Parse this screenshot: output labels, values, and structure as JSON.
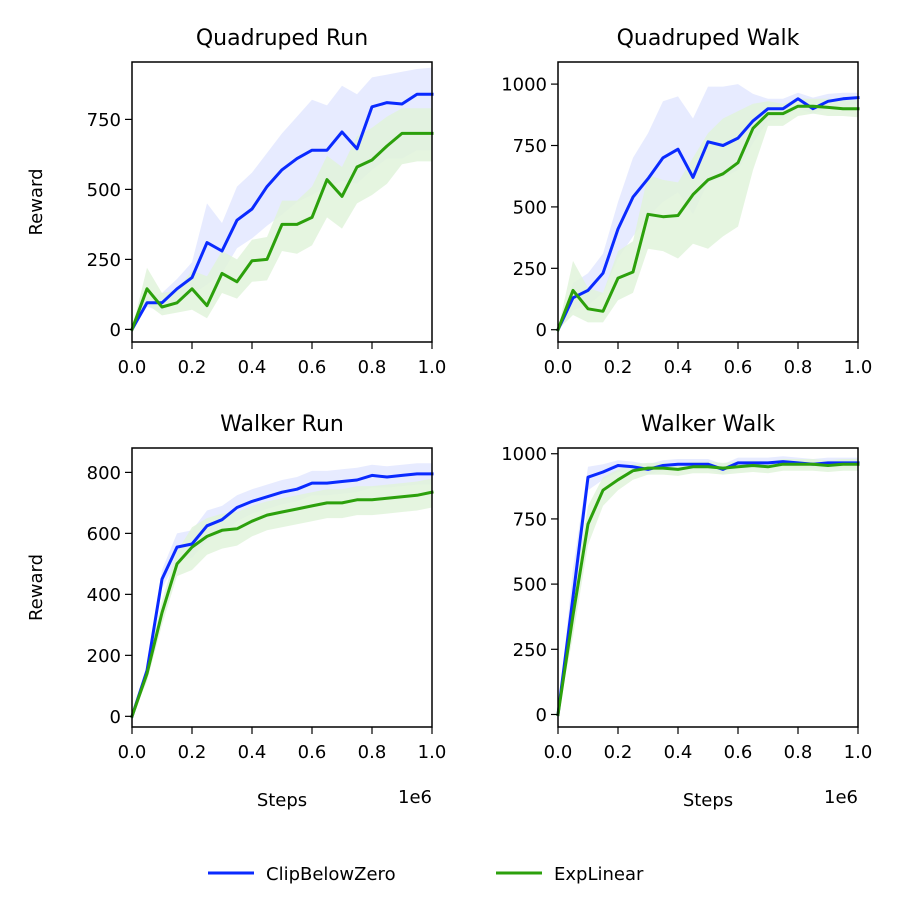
{
  "colors": {
    "ClipBelowZero": "#0a2aff",
    "ExpLinear": "#2ca00c",
    "ClipBelowZero_band": "#e3e8ff",
    "ExpLinear_band": "#e1f3da"
  },
  "legend": {
    "placement": "bottom-center",
    "items": [
      {
        "name": "ClipBelowZero",
        "color_key": "ClipBelowZero"
      },
      {
        "name": "ExpLinear",
        "color_key": "ExpLinear"
      }
    ]
  },
  "chart_data": [
    {
      "type": "line",
      "title": "Quadruped Run",
      "xlabel": "",
      "ylabel": "Reward",
      "x_offset_text": "",
      "xlim": [
        0,
        1.0
      ],
      "ylim": [
        -45,
        955
      ],
      "xticks": [
        0.0,
        0.2,
        0.4,
        0.6,
        0.8,
        1.0
      ],
      "xtick_labels": [
        "0.0",
        "0.2",
        "0.4",
        "0.6",
        "0.8",
        "1.0"
      ],
      "yticks": [
        0,
        250,
        500,
        750
      ],
      "ytick_labels": [
        "0",
        "250",
        "500",
        "750"
      ],
      "grid": false,
      "x": [
        0,
        0.05,
        0.1,
        0.15,
        0.2,
        0.25,
        0.3,
        0.35,
        0.4,
        0.45,
        0.5,
        0.55,
        0.6,
        0.65,
        0.7,
        0.75,
        0.8,
        0.85,
        0.9,
        0.95,
        1.0
      ],
      "series": [
        {
          "name": "ClipBelowZero",
          "values": [
            0,
            95,
            95,
            145,
            185,
            310,
            280,
            390,
            430,
            510,
            570,
            610,
            640,
            640,
            705,
            645,
            795,
            810,
            805,
            840,
            840
          ],
          "band_lower": [
            0,
            80,
            65,
            100,
            125,
            160,
            200,
            290,
            325,
            370,
            410,
            455,
            480,
            510,
            530,
            520,
            570,
            610,
            610,
            640,
            640
          ],
          "band_upper": [
            0,
            115,
            130,
            180,
            240,
            450,
            380,
            510,
            560,
            630,
            700,
            760,
            820,
            800,
            870,
            840,
            900,
            910,
            920,
            930,
            935
          ]
        },
        {
          "name": "ExpLinear",
          "values": [
            0,
            145,
            80,
            95,
            145,
            85,
            200,
            170,
            245,
            250,
            375,
            375,
            400,
            535,
            475,
            580,
            605,
            655,
            700,
            700,
            700
          ],
          "band_lower": [
            0,
            90,
            50,
            60,
            70,
            40,
            130,
            110,
            170,
            175,
            280,
            270,
            300,
            400,
            360,
            450,
            480,
            520,
            590,
            600,
            600
          ],
          "band_upper": [
            0,
            220,
            130,
            140,
            210,
            190,
            280,
            250,
            320,
            330,
            460,
            460,
            510,
            620,
            580,
            690,
            720,
            760,
            790,
            790,
            790
          ]
        }
      ]
    },
    {
      "type": "line",
      "title": "Quadruped Walk",
      "xlabel": "",
      "ylabel": "",
      "x_offset_text": "",
      "xlim": [
        0,
        1.0
      ],
      "ylim": [
        -50,
        1090
      ],
      "xticks": [
        0.0,
        0.2,
        0.4,
        0.6,
        0.8,
        1.0
      ],
      "xtick_labels": [
        "0.0",
        "0.2",
        "0.4",
        "0.6",
        "0.8",
        "1.0"
      ],
      "yticks": [
        0,
        250,
        500,
        750,
        1000
      ],
      "ytick_labels": [
        "0",
        "250",
        "500",
        "750",
        "1000"
      ],
      "grid": false,
      "x": [
        0,
        0.05,
        0.1,
        0.15,
        0.2,
        0.25,
        0.3,
        0.35,
        0.4,
        0.45,
        0.5,
        0.55,
        0.6,
        0.65,
        0.7,
        0.75,
        0.8,
        0.85,
        0.9,
        0.95,
        1.0
      ],
      "series": [
        {
          "name": "ClipBelowZero",
          "values": [
            0,
            130,
            160,
            230,
            410,
            540,
            615,
            700,
            735,
            620,
            765,
            750,
            780,
            850,
            900,
            900,
            940,
            900,
            930,
            940,
            945
          ],
          "band_lower": [
            0,
            80,
            100,
            150,
            290,
            380,
            460,
            520,
            560,
            470,
            600,
            620,
            650,
            760,
            850,
            860,
            900,
            880,
            900,
            910,
            920
          ],
          "band_upper": [
            0,
            190,
            230,
            310,
            520,
            700,
            800,
            930,
            950,
            860,
            990,
            990,
            1000,
            960,
            940,
            940,
            965,
            945,
            960,
            965,
            965
          ]
        },
        {
          "name": "ExpLinear",
          "values": [
            0,
            160,
            85,
            75,
            210,
            235,
            470,
            460,
            465,
            550,
            610,
            635,
            680,
            820,
            880,
            880,
            910,
            910,
            905,
            900,
            900
          ],
          "band_lower": [
            0,
            60,
            30,
            30,
            120,
            150,
            330,
            320,
            290,
            350,
            330,
            380,
            420,
            650,
            830,
            830,
            870,
            880,
            870,
            870,
            865
          ],
          "band_upper": [
            0,
            280,
            170,
            150,
            320,
            360,
            630,
            610,
            600,
            700,
            800,
            860,
            890,
            920,
            930,
            920,
            940,
            940,
            940,
            935,
            935
          ]
        }
      ]
    },
    {
      "type": "line",
      "title": "Walker Run",
      "xlabel": "Steps",
      "ylabel": "Reward",
      "x_offset_text": "1e6",
      "xlim": [
        0,
        1.0
      ],
      "ylim": [
        -35,
        880
      ],
      "xticks": [
        0.0,
        0.2,
        0.4,
        0.6,
        0.8,
        1.0
      ],
      "xtick_labels": [
        "0.0",
        "0.2",
        "0.4",
        "0.6",
        "0.8",
        "1.0"
      ],
      "yticks": [
        0,
        200,
        400,
        600,
        800
      ],
      "ytick_labels": [
        "0",
        "200",
        "400",
        "600",
        "800"
      ],
      "grid": false,
      "x": [
        0,
        0.05,
        0.1,
        0.15,
        0.2,
        0.25,
        0.3,
        0.35,
        0.4,
        0.45,
        0.5,
        0.55,
        0.6,
        0.65,
        0.7,
        0.75,
        0.8,
        0.85,
        0.9,
        0.95,
        1.0
      ],
      "series": [
        {
          "name": "ClipBelowZero",
          "values": [
            0,
            150,
            450,
            555,
            565,
            625,
            645,
            685,
            705,
            720,
            735,
            745,
            765,
            765,
            770,
            775,
            790,
            785,
            790,
            795,
            795
          ],
          "band_lower": [
            0,
            130,
            420,
            510,
            520,
            575,
            600,
            640,
            665,
            680,
            695,
            705,
            725,
            725,
            730,
            735,
            750,
            750,
            755,
            760,
            760
          ],
          "band_upper": [
            0,
            170,
            480,
            600,
            610,
            675,
            690,
            725,
            745,
            760,
            775,
            785,
            805,
            805,
            810,
            815,
            825,
            820,
            825,
            830,
            830
          ]
        },
        {
          "name": "ExpLinear",
          "values": [
            0,
            140,
            340,
            500,
            555,
            590,
            610,
            615,
            640,
            660,
            670,
            680,
            690,
            700,
            700,
            710,
            710,
            715,
            720,
            725,
            735
          ],
          "band_lower": [
            0,
            115,
            300,
            460,
            480,
            530,
            550,
            560,
            590,
            610,
            620,
            630,
            640,
            650,
            650,
            660,
            660,
            665,
            670,
            675,
            685
          ],
          "band_upper": [
            0,
            165,
            380,
            540,
            620,
            650,
            665,
            670,
            690,
            705,
            715,
            725,
            735,
            745,
            745,
            755,
            755,
            760,
            765,
            770,
            780
          ]
        }
      ]
    },
    {
      "type": "line",
      "title": "Walker Walk",
      "xlabel": "Steps",
      "ylabel": "",
      "x_offset_text": "1e6",
      "xlim": [
        0,
        1.0
      ],
      "ylim": [
        -48,
        1022
      ],
      "xticks": [
        0.0,
        0.2,
        0.4,
        0.6,
        0.8,
        1.0
      ],
      "xtick_labels": [
        "0.0",
        "0.2",
        "0.4",
        "0.6",
        "0.8",
        "1.0"
      ],
      "yticks": [
        0,
        250,
        500,
        750,
        1000
      ],
      "ytick_labels": [
        "0",
        "250",
        "500",
        "750",
        "1000"
      ],
      "grid": false,
      "x": [
        0,
        0.05,
        0.1,
        0.15,
        0.2,
        0.25,
        0.3,
        0.35,
        0.4,
        0.45,
        0.5,
        0.55,
        0.6,
        0.65,
        0.7,
        0.75,
        0.8,
        0.85,
        0.9,
        0.95,
        1.0
      ],
      "series": [
        {
          "name": "ClipBelowZero",
          "values": [
            0,
            450,
            910,
            930,
            955,
            950,
            940,
            955,
            960,
            960,
            960,
            940,
            965,
            965,
            965,
            970,
            965,
            960,
            965,
            965,
            965
          ],
          "band_lower": [
            0,
            350,
            860,
            900,
            930,
            930,
            920,
            935,
            940,
            940,
            940,
            920,
            945,
            945,
            945,
            950,
            945,
            945,
            945,
            945,
            945
          ],
          "band_upper": [
            0,
            560,
            950,
            960,
            975,
            970,
            960,
            975,
            980,
            980,
            980,
            960,
            985,
            985,
            985,
            990,
            985,
            980,
            985,
            985,
            985
          ]
        },
        {
          "name": "ExpLinear",
          "values": [
            0,
            380,
            730,
            860,
            900,
            935,
            945,
            945,
            940,
            950,
            950,
            945,
            950,
            955,
            950,
            960,
            960,
            960,
            955,
            960,
            960
          ],
          "band_lower": [
            0,
            300,
            650,
            800,
            860,
            900,
            920,
            920,
            915,
            925,
            925,
            920,
            925,
            930,
            925,
            935,
            935,
            935,
            930,
            935,
            935
          ],
          "band_upper": [
            0,
            460,
            800,
            910,
            940,
            960,
            965,
            965,
            960,
            970,
            970,
            965,
            970,
            975,
            970,
            980,
            980,
            980,
            975,
            980,
            980
          ]
        }
      ]
    }
  ]
}
